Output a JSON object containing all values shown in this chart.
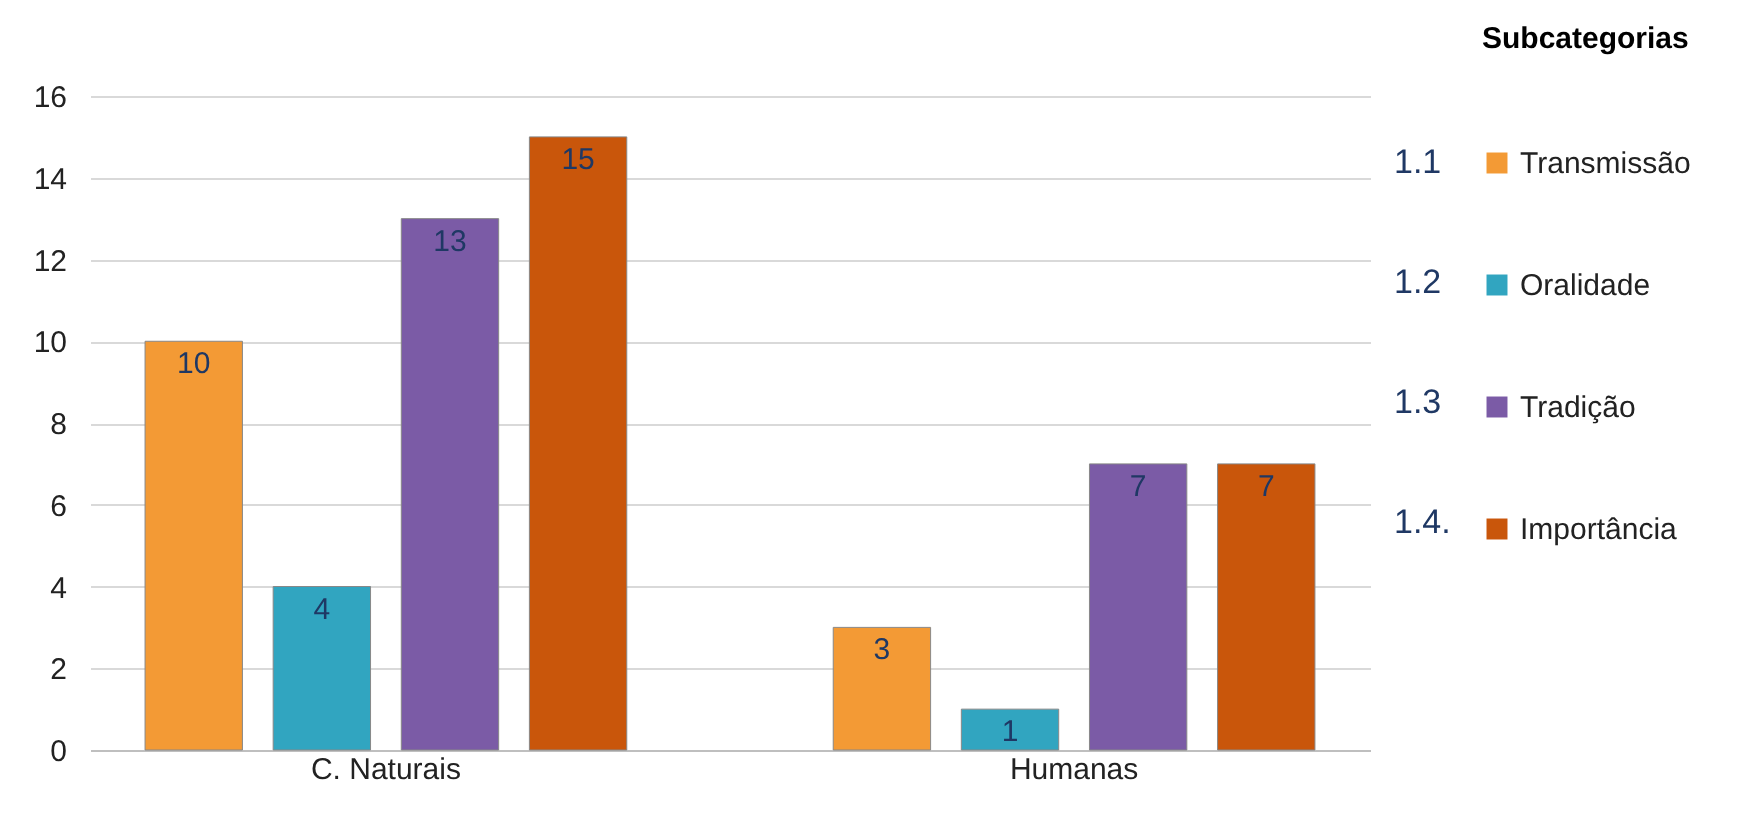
{
  "chart_data": {
    "type": "bar",
    "categories": [
      "C. Naturais",
      "Humanas"
    ],
    "series": [
      {
        "name": "Transmissão",
        "color": "#f39a35",
        "values": [
          10,
          3
        ]
      },
      {
        "name": "Oralidade",
        "color": "#31a5c0",
        "values": [
          4,
          1
        ]
      },
      {
        "name": "Tradição",
        "color": "#7b5ba6",
        "values": [
          13,
          7
        ]
      },
      {
        "name": "Importância",
        "color": "#c9560b",
        "values": [
          15,
          7
        ]
      }
    ],
    "legend_title": "Subcategorias",
    "legend": "right",
    "annotations": [
      "1.1",
      "1.2",
      "1.3",
      "1.4."
    ],
    "ylim": [
      0,
      16
    ],
    "yticks": [
      0,
      2,
      4,
      6,
      8,
      10,
      12,
      14,
      16
    ],
    "grid": "y",
    "data_labels": true
  }
}
